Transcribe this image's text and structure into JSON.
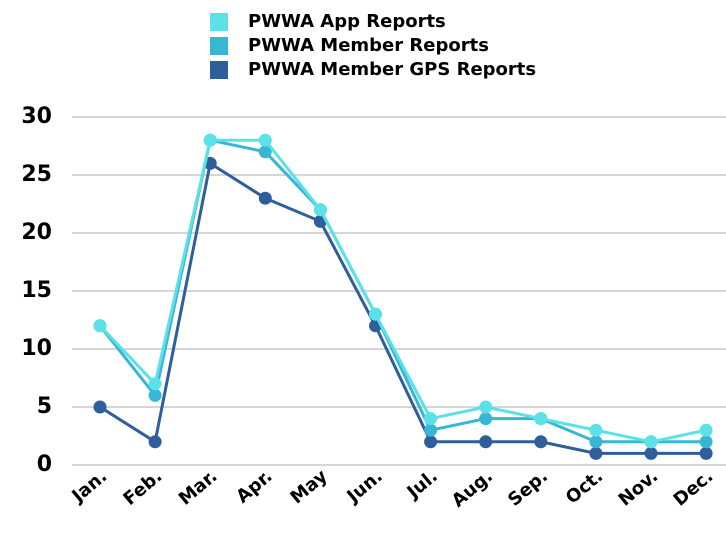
{
  "chart_data": {
    "type": "line",
    "categories": [
      "Jan.",
      "Feb.",
      "Mar.",
      "Apr.",
      "May",
      "Jun.",
      "Jul.",
      "Aug.",
      "Sep.",
      "Oct.",
      "Nov.",
      "Dec."
    ],
    "series": [
      {
        "name": "PWWA App Reports",
        "color": "#5ce1e6",
        "values": [
          12,
          7,
          28,
          28,
          22,
          13,
          4,
          5,
          4,
          3,
          2,
          3
        ]
      },
      {
        "name": "PWWA Member Reports",
        "color": "#38b6d6",
        "values": [
          12,
          6,
          28,
          27,
          22,
          13,
          3,
          4,
          4,
          2,
          2,
          2
        ]
      },
      {
        "name": "PWWA Member GPS Reports",
        "color": "#2e5e9c",
        "values": [
          5,
          2,
          26,
          23,
          21,
          12,
          2,
          2,
          2,
          1,
          1,
          1
        ]
      }
    ],
    "ylim": [
      0,
      30
    ],
    "yticks": [
      0,
      5,
      10,
      15,
      20,
      25,
      30
    ],
    "grid": true,
    "legend": "top"
  }
}
